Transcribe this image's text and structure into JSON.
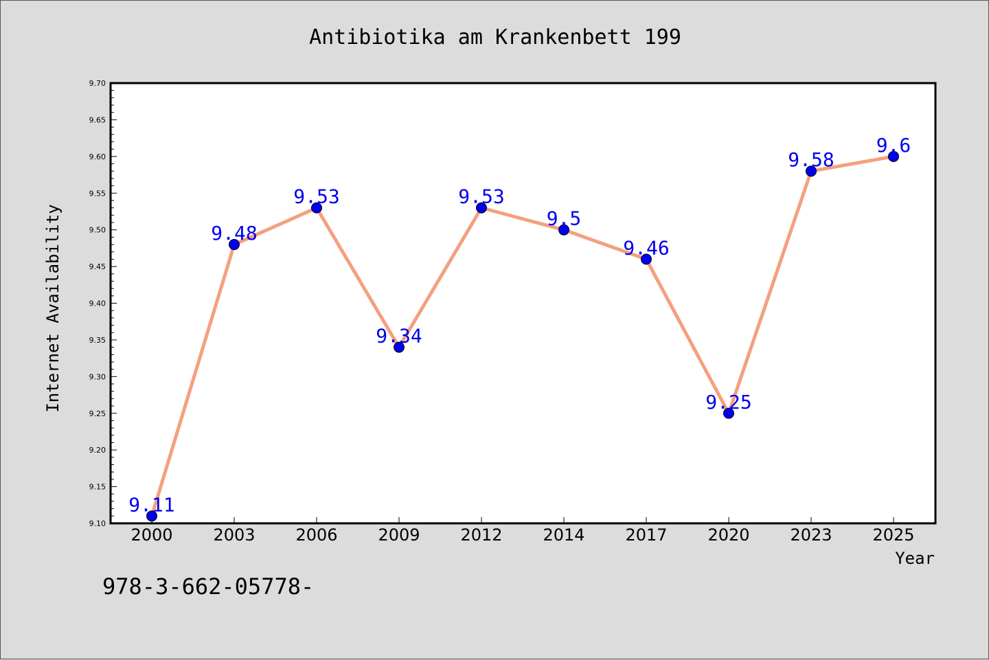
{
  "chart_data": {
    "type": "line",
    "title": "Antibiotika am Krankenbett 199",
    "xlabel": "Year",
    "ylabel": "Internet Availability",
    "categories": [
      "2000",
      "2003",
      "2006",
      "2009",
      "2012",
      "2014",
      "2017",
      "2020",
      "2023",
      "2025"
    ],
    "series": [
      {
        "values": [
          9.11,
          9.48,
          9.53,
          9.34,
          9.53,
          9.5,
          9.46,
          9.25,
          9.58,
          9.6
        ],
        "data_labels": [
          "9.11",
          "9.48",
          "9.53",
          "9.34",
          "9.53",
          "9.5",
          "9.46",
          "9.25",
          "9.58",
          "9.6"
        ],
        "line_color": "#f4a080",
        "marker_color": "#0000ee",
        "label_color": "#0000ee"
      }
    ],
    "ylim": [
      9.1,
      9.7
    ],
    "y_ticks": [
      "9.10",
      "9.15",
      "9.20",
      "9.25",
      "9.30",
      "9.35",
      "9.40",
      "9.45",
      "9.50",
      "9.55",
      "9.60",
      "9.65",
      "9.70"
    ],
    "grid": false,
    "legend": "none"
  },
  "footer_text": "978-3-662-05778-",
  "colors": {
    "background": "#dcdcdc",
    "plot_background": "#ffffff",
    "axis": "#000000"
  }
}
